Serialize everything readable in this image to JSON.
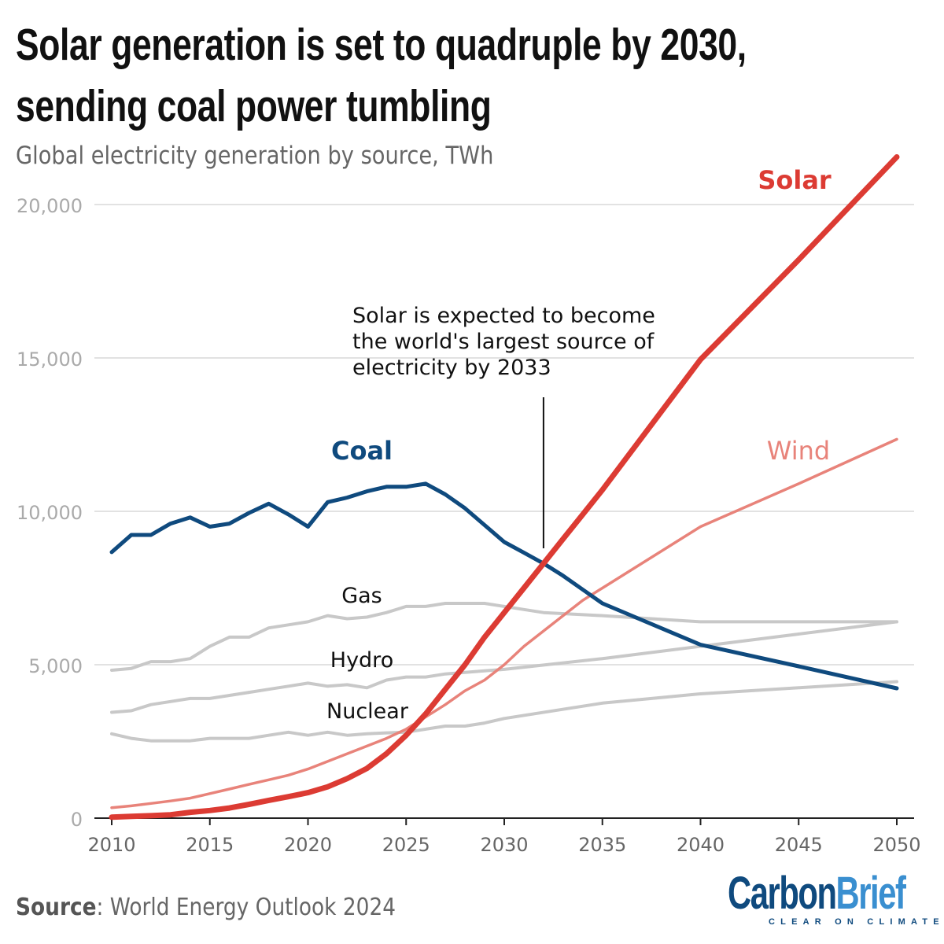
{
  "title_line1": "Solar generation is set to quadruple by 2030,",
  "title_line2": "sending coal power tumbling",
  "subtitle": "Global electricity generation by source, TWh",
  "source_label": "Source",
  "source_text": ": World Energy Outlook 2024",
  "logo": {
    "part1": "Carbon",
    "part2": "Brief",
    "tagline": "CLEAR ON CLIMATE"
  },
  "chart_data": {
    "type": "line",
    "title": "Solar generation is set to quadruple by 2030, sending coal power tumbling",
    "subtitle": "Global electricity generation by source, TWh",
    "xlim": [
      2010,
      2050
    ],
    "ylim": [
      0,
      21700
    ],
    "x_ticks": [
      2010,
      2015,
      2020,
      2025,
      2030,
      2035,
      2040,
      2045,
      2050
    ],
    "y_ticks": [
      0,
      5000,
      10000,
      15000,
      20000
    ],
    "y_tick_labels": [
      "0",
      "5,000",
      "10,000",
      "15,000",
      "20,000"
    ],
    "grid": "horizontal",
    "annotation": {
      "text_lines": [
        "Solar is expected to become",
        "the world's largest source of",
        "electricity by 2033"
      ],
      "x": 2032
    },
    "series": [
      {
        "name": "Coal",
        "color": "#0f4a7e",
        "x": [
          2010,
          2011,
          2012,
          2013,
          2014,
          2015,
          2016,
          2017,
          2018,
          2019,
          2020,
          2021,
          2022,
          2023,
          2024,
          2025,
          2026,
          2027,
          2028,
          2029,
          2030,
          2031,
          2032,
          2033,
          2034,
          2035,
          2040,
          2045,
          2050
        ],
        "y": [
          8670,
          9230,
          9230,
          9600,
          9800,
          9500,
          9600,
          9950,
          10250,
          9900,
          9500,
          10300,
          10450,
          10650,
          10800,
          10800,
          10900,
          10550,
          10100,
          9550,
          9000,
          8650,
          8300,
          7900,
          7450,
          7000,
          5650,
          4950,
          4230
        ]
      },
      {
        "name": "Solar",
        "color": "#dc3b33",
        "x": [
          2010,
          2011,
          2012,
          2013,
          2014,
          2015,
          2016,
          2017,
          2018,
          2019,
          2020,
          2021,
          2022,
          2023,
          2024,
          2025,
          2026,
          2027,
          2028,
          2029,
          2030,
          2031,
          2032,
          2033,
          2034,
          2035,
          2040,
          2045,
          2050
        ],
        "y": [
          30,
          60,
          80,
          110,
          190,
          250,
          330,
          450,
          580,
          700,
          830,
          1020,
          1290,
          1620,
          2100,
          2700,
          3400,
          4200,
          5000,
          5900,
          6700,
          7500,
          8300,
          9100,
          9900,
          10700,
          14950,
          18200,
          21550
        ]
      },
      {
        "name": "Wind",
        "color": "#e8837a",
        "x": [
          2010,
          2011,
          2012,
          2013,
          2014,
          2015,
          2016,
          2017,
          2018,
          2019,
          2020,
          2021,
          2022,
          2023,
          2024,
          2025,
          2026,
          2027,
          2028,
          2029,
          2030,
          2031,
          2032,
          2033,
          2034,
          2035,
          2040,
          2045,
          2050
        ],
        "y": [
          340,
          400,
          480,
          560,
          650,
          800,
          950,
          1100,
          1250,
          1400,
          1600,
          1850,
          2100,
          2350,
          2600,
          2900,
          3300,
          3700,
          4150,
          4500,
          5000,
          5600,
          6100,
          6600,
          7100,
          7500,
          9500,
          10900,
          12350
        ]
      },
      {
        "name": "Gas",
        "color": "#c8c8c8",
        "x": [
          2010,
          2011,
          2012,
          2013,
          2014,
          2015,
          2016,
          2017,
          2018,
          2019,
          2020,
          2021,
          2022,
          2023,
          2024,
          2025,
          2026,
          2027,
          2028,
          2029,
          2030,
          2031,
          2032,
          2035,
          2040,
          2045,
          2050
        ],
        "y": [
          4820,
          4880,
          5100,
          5100,
          5200,
          5600,
          5900,
          5900,
          6200,
          6300,
          6400,
          6600,
          6500,
          6550,
          6700,
          6900,
          6900,
          7000,
          7000,
          7000,
          6900,
          6800,
          6700,
          6600,
          6400,
          6400,
          6400
        ]
      },
      {
        "name": "Hydro",
        "color": "#c8c8c8",
        "x": [
          2010,
          2011,
          2012,
          2013,
          2014,
          2015,
          2016,
          2017,
          2018,
          2019,
          2020,
          2021,
          2022,
          2023,
          2024,
          2025,
          2026,
          2027,
          2028,
          2029,
          2030,
          2035,
          2040,
          2045,
          2050
        ],
        "y": [
          3450,
          3500,
          3700,
          3800,
          3900,
          3900,
          4000,
          4100,
          4200,
          4300,
          4400,
          4300,
          4350,
          4250,
          4500,
          4600,
          4600,
          4700,
          4750,
          4800,
          4850,
          5200,
          5600,
          6000,
          6400
        ]
      },
      {
        "name": "Nuclear",
        "color": "#c8c8c8",
        "x": [
          2010,
          2011,
          2012,
          2013,
          2014,
          2015,
          2016,
          2017,
          2018,
          2019,
          2020,
          2021,
          2022,
          2023,
          2024,
          2025,
          2026,
          2027,
          2028,
          2029,
          2030,
          2035,
          2040,
          2045,
          2050
        ],
        "y": [
          2750,
          2600,
          2520,
          2520,
          2520,
          2600,
          2600,
          2600,
          2700,
          2800,
          2700,
          2800,
          2700,
          2750,
          2780,
          2800,
          2900,
          3000,
          3000,
          3100,
          3250,
          3750,
          4050,
          4250,
          4450
        ]
      }
    ]
  }
}
